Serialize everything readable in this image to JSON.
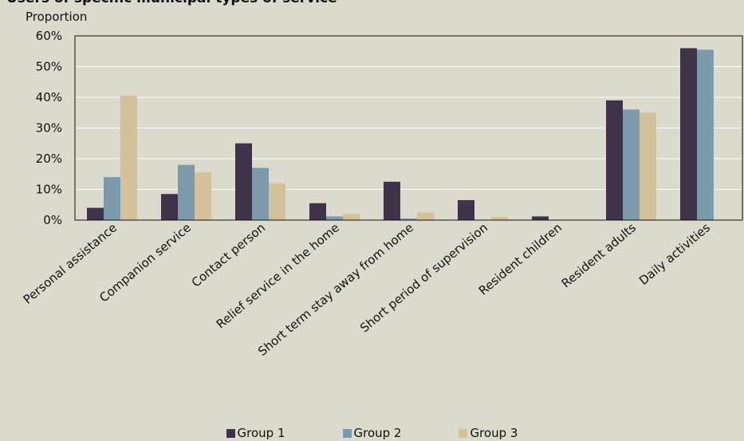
{
  "chart_data": {
    "type": "bar",
    "title": "Users of specific municipal types of service",
    "ylabel": "Proportion",
    "ylim": [
      0,
      60
    ],
    "yticks": [
      "0%",
      "10%",
      "20%",
      "30%",
      "40%",
      "50%",
      "60%"
    ],
    "grid": true,
    "legend_position": "bottom",
    "categories": [
      "Personal assistance",
      "Companion service",
      "Contact person",
      "Relief service in the home",
      "Short term stay away from home",
      "Short period of supervision",
      "Resident children",
      "Resident adults",
      "Daily activities"
    ],
    "series": [
      {
        "name": "Group 1",
        "color": "#3e3348",
        "values": [
          4,
          8.5,
          25,
          5.5,
          12.5,
          6.5,
          1.2,
          39,
          56
        ]
      },
      {
        "name": "Group 2",
        "color": "#7c9aab",
        "values": [
          14,
          18,
          17,
          1.2,
          0.5,
          0,
          0,
          36,
          55.5
        ]
      },
      {
        "name": "Group 3",
        "color": "#d3c199",
        "values": [
          40.5,
          15.5,
          12,
          2,
          2.5,
          1,
          0,
          35,
          0
        ]
      }
    ]
  }
}
